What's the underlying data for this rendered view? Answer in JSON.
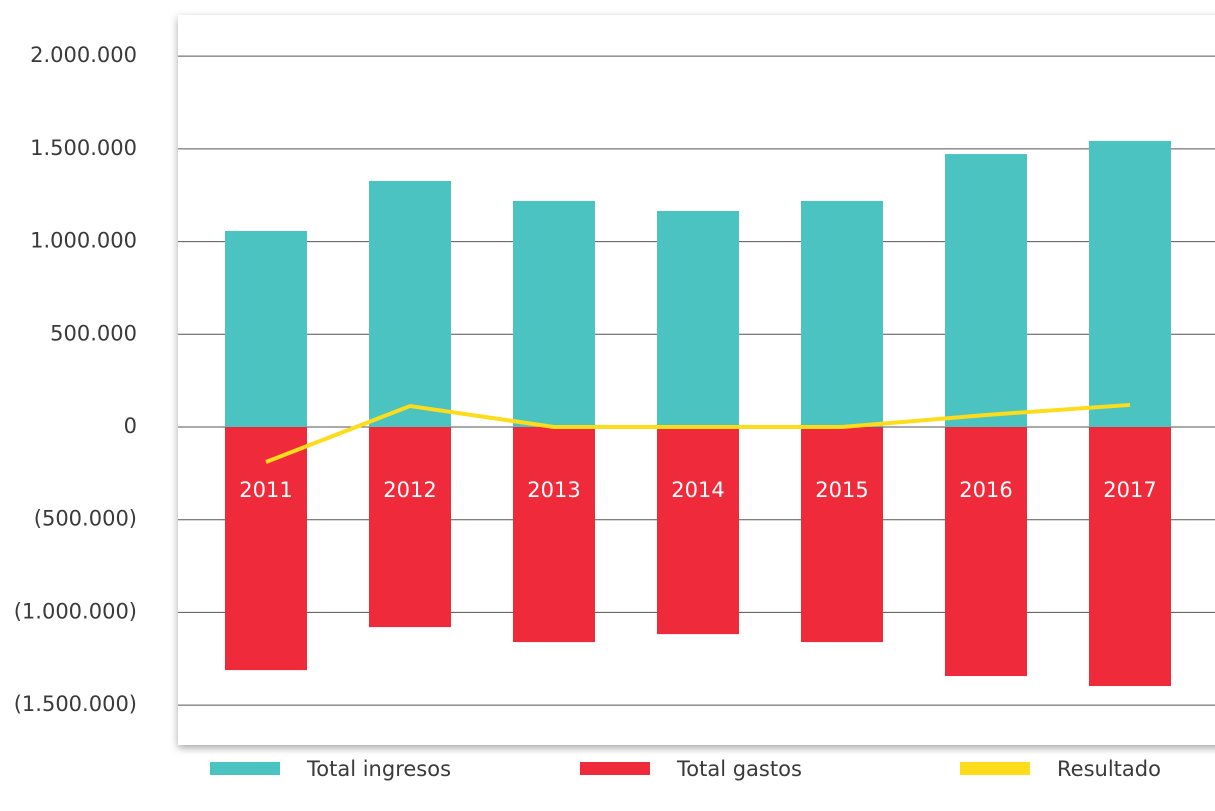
{
  "chart_data": {
    "type": "bar",
    "categories": [
      "2011",
      "2012",
      "2013",
      "2014",
      "2015",
      "2016",
      "2017"
    ],
    "series": [
      {
        "name": "Total ingresos",
        "color": "#4bc4c1",
        "type": "bar",
        "values": [
          1057000,
          1327000,
          1219000,
          1165000,
          1219000,
          1472000,
          1543000
        ]
      },
      {
        "name": "Total gastos",
        "color": "#ee2a3b",
        "type": "bar",
        "values": [
          -1311000,
          -1079000,
          -1160000,
          -1117000,
          -1160000,
          -1343000,
          -1397000
        ]
      },
      {
        "name": "Resultado",
        "color": "#fcdc1b",
        "type": "line",
        "values": [
          -189000,
          113000,
          0,
          0,
          0,
          65000,
          119000
        ]
      }
    ],
    "ylim": [
      -1715000,
      2222000
    ],
    "yticks": [
      {
        "value": -1500000,
        "label": "(1.500.000)"
      },
      {
        "value": -1000000,
        "label": "(1.000.000)"
      },
      {
        "value": -500000,
        "label": "(500.000)"
      },
      0,
      {
        "value": 500000,
        "label": "500.000"
      },
      {
        "value": 1000000,
        "label": "1.000.000"
      },
      {
        "value": 1500000,
        "label": "1.500.000"
      },
      {
        "value": 2000000,
        "label": "2.000.000"
      }
    ],
    "grid": true,
    "legend": "bottom"
  }
}
